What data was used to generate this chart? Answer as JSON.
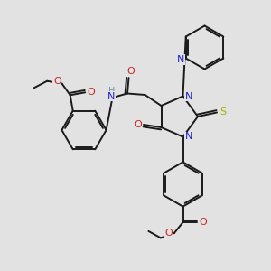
{
  "bg_color": "#e2e2e2",
  "bond_color": "#1a1a1a",
  "bond_width": 1.4,
  "N_color": "#2222cc",
  "O_color": "#cc2222",
  "S_color": "#aaaa00",
  "H_color": "#669999",
  "xlim": [
    0,
    10
  ],
  "ylim": [
    0,
    10
  ]
}
